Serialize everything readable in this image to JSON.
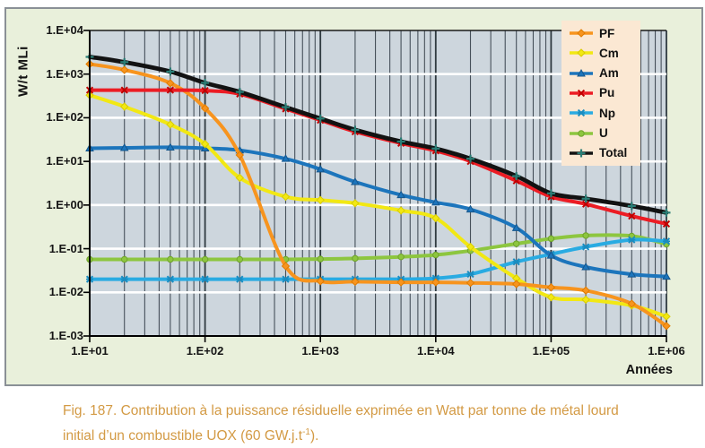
{
  "figure": {
    "y_axis_title": "W/t MLi",
    "x_axis_title": "Années",
    "caption": {
      "line1": "Fig. 187. Contribution à la puissance résiduelle exprimée en Watt par tonne de métal lourd",
      "line2_pre": "initial d’un combustible UOX (60 GW.j.t",
      "line2_sup": "-1",
      "line2_post": ")."
    },
    "colors": {
      "figure_background": "#E9F0DB",
      "figure_border": "#8A9096",
      "plot_background": "#CDD6DD",
      "grid_vertical": "#46505A",
      "grid_horizontal": "#FFFFFF",
      "axis": "#000000",
      "legend_background": "#FBE8D3",
      "caption_text": "#D39A44"
    }
  },
  "chart_data": {
    "type": "line",
    "title": "",
    "xlabel": "Années",
    "ylabel": "W/t MLi",
    "log_x": true,
    "log_y": true,
    "xlim": [
      10,
      1000000
    ],
    "ylim": [
      0.001,
      10000
    ],
    "x_ticks": [
      "1.E+01",
      "1.E+02",
      "1.E+03",
      "1.E+04",
      "1.E+05",
      "1.E+06"
    ],
    "y_ticks": [
      "1.E+04",
      "1.E+03",
      "1.E+02",
      "1.E+01",
      "1.E+00",
      "1.E-01",
      "1.E-02",
      "1.E-03"
    ],
    "grid": true,
    "legend_position": "top-right",
    "x": [
      10,
      20,
      50,
      100,
      200,
      500,
      1000,
      2000,
      5000,
      10000,
      20000,
      50000,
      100000,
      200000,
      500000,
      1000000
    ],
    "series": [
      {
        "name": "U",
        "color": "#8DC63F",
        "edge": "#6FA32C",
        "marker": "circle",
        "values": [
          0.057,
          0.057,
          0.057,
          0.057,
          0.057,
          0.057,
          0.058,
          0.06,
          0.065,
          0.072,
          0.09,
          0.13,
          0.17,
          0.2,
          0.195,
          0.127
        ]
      },
      {
        "name": "Np",
        "color": "#29ABE2",
        "edge": "#1A8CC0",
        "marker": "asterisk",
        "values": [
          0.02,
          0.02,
          0.02,
          0.02,
          0.02,
          0.02,
          0.02,
          0.02,
          0.02,
          0.021,
          0.026,
          0.05,
          0.075,
          0.11,
          0.16,
          0.148
        ]
      },
      {
        "name": "Am",
        "color": "#1C75BC",
        "edge": "#15568C",
        "marker": "triangle",
        "values": [
          20,
          20.5,
          21,
          20,
          18,
          11.5,
          6.6,
          3.4,
          1.7,
          1.15,
          0.8,
          0.3,
          0.07,
          0.038,
          0.026,
          0.023
        ]
      },
      {
        "name": "Cm",
        "color": "#F2E813",
        "edge": "#D8CC00",
        "marker": "diamond",
        "values": [
          330,
          180,
          70,
          25,
          4.2,
          1.55,
          1.3,
          1.1,
          0.75,
          0.5,
          0.11,
          0.021,
          0.0077,
          0.0068,
          0.005,
          0.0028
        ]
      },
      {
        "name": "PF",
        "color": "#F7941E",
        "edge": "#E07B00",
        "marker": "diamond",
        "values": [
          1700,
          1250,
          620,
          165,
          14,
          0.04,
          0.018,
          0.0175,
          0.017,
          0.017,
          0.0165,
          0.0155,
          0.013,
          0.011,
          0.0055,
          0.0017
        ]
      },
      {
        "name": "Pu",
        "color": "#EC1C24",
        "edge": "#C00000",
        "marker": "x",
        "values": [
          430,
          430,
          430,
          420,
          350,
          160,
          88,
          48,
          26,
          17.5,
          10,
          3.6,
          1.55,
          1.05,
          0.56,
          0.37
        ]
      },
      {
        "name": "Total",
        "color": "#121212",
        "edge": "#2A7E76",
        "marker": "plus",
        "marker_color": "#2A7E76",
        "values": [
          2480,
          1880,
          1140,
          630,
          390,
          175,
          96,
          53,
          28.5,
          19.7,
          11.5,
          4.6,
          1.85,
          1.4,
          0.95,
          0.67
        ]
      }
    ],
    "legend_order": [
      "PF",
      "Cm",
      "Am",
      "Pu",
      "Np",
      "U",
      "Total"
    ]
  }
}
